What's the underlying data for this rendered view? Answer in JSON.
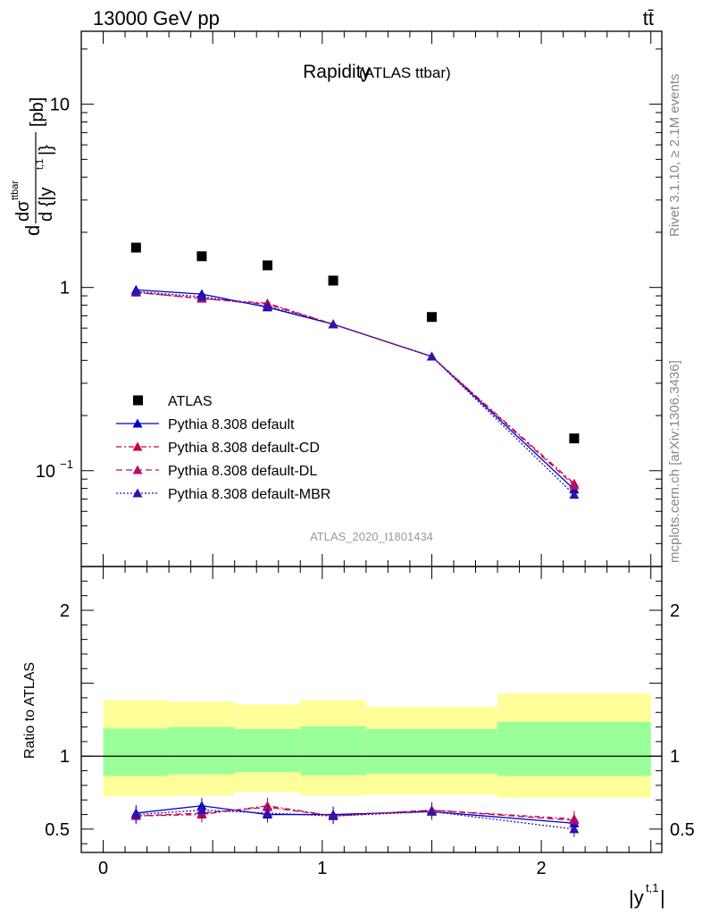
{
  "header": {
    "energy_label": "13000 GeV pp",
    "process_label": "tt̄"
  },
  "side_labels": {
    "rivet": "Rivet 3.1.10, ≥ 2.1M events",
    "mcplots": "mcplots.cern.ch [arXiv:1306.3436]"
  },
  "chart_data": [
    {
      "type": "scatter",
      "panel": "main",
      "title": "Rapidity",
      "subtitle": "(ATLAS ttbar)",
      "analysis_id": "ATLAS_2020_I1801434",
      "ylabel": "d dσ^{ttbar} / d{|y^{t,1}|} [pb]",
      "yscale": "log",
      "ylim": [
        0.03,
        25
      ],
      "xlim": [
        -0.1,
        2.55
      ],
      "y_ticks": [
        {
          "value": 0.1,
          "label": "10",
          "exp": "−1"
        },
        {
          "value": 1,
          "label": "1",
          "exp": ""
        },
        {
          "value": 10,
          "label": "10",
          "exp": ""
        }
      ],
      "x": [
        0.15,
        0.45,
        0.75,
        1.05,
        1.5,
        2.15
      ],
      "bin_edges": [
        0,
        0.3,
        0.6,
        0.9,
        1.2,
        1.8,
        2.5
      ],
      "legend_position": "bottom-left",
      "series": [
        {
          "name": "ATLAS",
          "marker": "square",
          "line": "none",
          "color": "#000000",
          "values": [
            1.65,
            1.48,
            1.32,
            1.09,
            0.69,
            0.15
          ]
        },
        {
          "name": "Pythia 8.308 default",
          "marker": "triangle",
          "line": "solid",
          "color": "#0000cc",
          "values": [
            0.97,
            0.92,
            0.78,
            0.63,
            0.42,
            0.079
          ]
        },
        {
          "name": "Pythia 8.308 default-CD",
          "marker": "triangle",
          "line": "dashdot",
          "color": "#cc0033",
          "values": [
            0.94,
            0.87,
            0.82,
            0.63,
            0.42,
            0.085
          ]
        },
        {
          "name": "Pythia 8.308 default-DL",
          "marker": "triangle",
          "line": "dashed",
          "color": "#b0136b",
          "values": [
            0.94,
            0.87,
            0.81,
            0.63,
            0.42,
            0.083
          ]
        },
        {
          "name": "Pythia 8.308 default-MBR",
          "marker": "triangle",
          "line": "dotted",
          "color": "#3311aa",
          "values": [
            0.95,
            0.89,
            0.79,
            0.63,
            0.42,
            0.074
          ]
        }
      ]
    },
    {
      "type": "line",
      "panel": "ratio",
      "ylabel": "Ratio to ATLAS",
      "xlabel": "|y^{t,1}|",
      "ylim": [
        0.34,
        2.3
      ],
      "xlim": [
        -0.1,
        2.55
      ],
      "y_ticks": [
        0.5,
        1,
        2
      ],
      "x_ticks": [
        0,
        1,
        2
      ],
      "x": [
        0.15,
        0.45,
        0.75,
        1.05,
        1.5,
        2.15
      ],
      "bands": {
        "bin_edges": [
          0,
          0.3,
          0.6,
          0.9,
          1.2,
          1.8,
          2.5
        ],
        "yellow_low": [
          0.725,
          0.73,
          0.755,
          0.73,
          0.735,
          0.715
        ],
        "yellow_high": [
          1.385,
          1.375,
          1.355,
          1.385,
          1.34,
          1.43
        ],
        "green_low": [
          0.865,
          0.875,
          0.89,
          0.87,
          0.88,
          0.865
        ],
        "green_high": [
          1.19,
          1.2,
          1.185,
          1.205,
          1.185,
          1.235
        ],
        "yellow_color": "#ffff99",
        "green_color": "#99ff99"
      },
      "series": [
        {
          "name": "Pythia 8.308 default",
          "color": "#0000cc",
          "line": "solid",
          "values": [
            0.61,
            0.66,
            0.6,
            0.6,
            0.62,
            0.54
          ]
        },
        {
          "name": "Pythia 8.308 default-CD",
          "color": "#cc0033",
          "line": "dashdot",
          "values": [
            0.59,
            0.6,
            0.66,
            0.59,
            0.63,
            0.57
          ]
        },
        {
          "name": "Pythia 8.308 default-DL",
          "color": "#b0136b",
          "line": "dashed",
          "values": [
            0.59,
            0.61,
            0.65,
            0.59,
            0.63,
            0.56
          ]
        },
        {
          "name": "Pythia 8.308 default-MBR",
          "color": "#3311aa",
          "line": "dotted",
          "values": [
            0.6,
            0.63,
            0.61,
            0.59,
            0.62,
            0.5
          ]
        }
      ]
    }
  ]
}
